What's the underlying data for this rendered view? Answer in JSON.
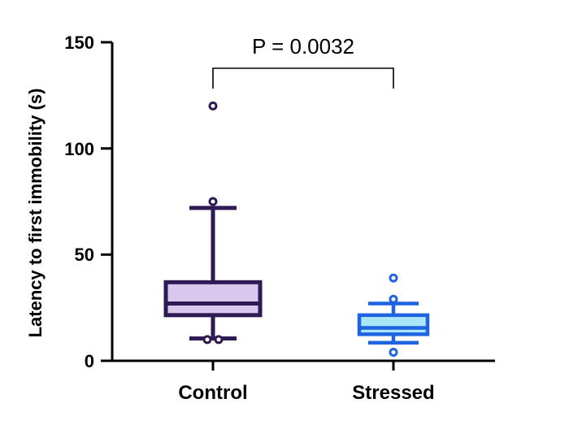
{
  "chart_data": {
    "type": "box",
    "ylabel": "Latency to first immobility (s)",
    "ylim": [
      0,
      150
    ],
    "yticks": [
      "0",
      "50",
      "100",
      "150"
    ],
    "categories": [
      "Control",
      "Stressed"
    ],
    "boxes": [
      {
        "name": "Control",
        "whisker_low": 10.5,
        "q1": 21.5,
        "median": 27,
        "q3": 37,
        "whisker_high": 72,
        "outliers": [
          10,
          10,
          75,
          120
        ],
        "stroke": "#2e1a55",
        "fill": "#d9c8ee"
      },
      {
        "name": "Stressed",
        "whisker_low": 8.5,
        "q1": 12.5,
        "median": 15.5,
        "q3": 21.5,
        "whisker_high": 27,
        "outliers": [
          4,
          29,
          39
        ],
        "stroke": "#1e63e0",
        "fill": "#a9e6f7"
      }
    ],
    "annotation": {
      "text": "P = 0.0032",
      "between": [
        "Control",
        "Stressed"
      ]
    },
    "grid": false,
    "legend": "none"
  }
}
